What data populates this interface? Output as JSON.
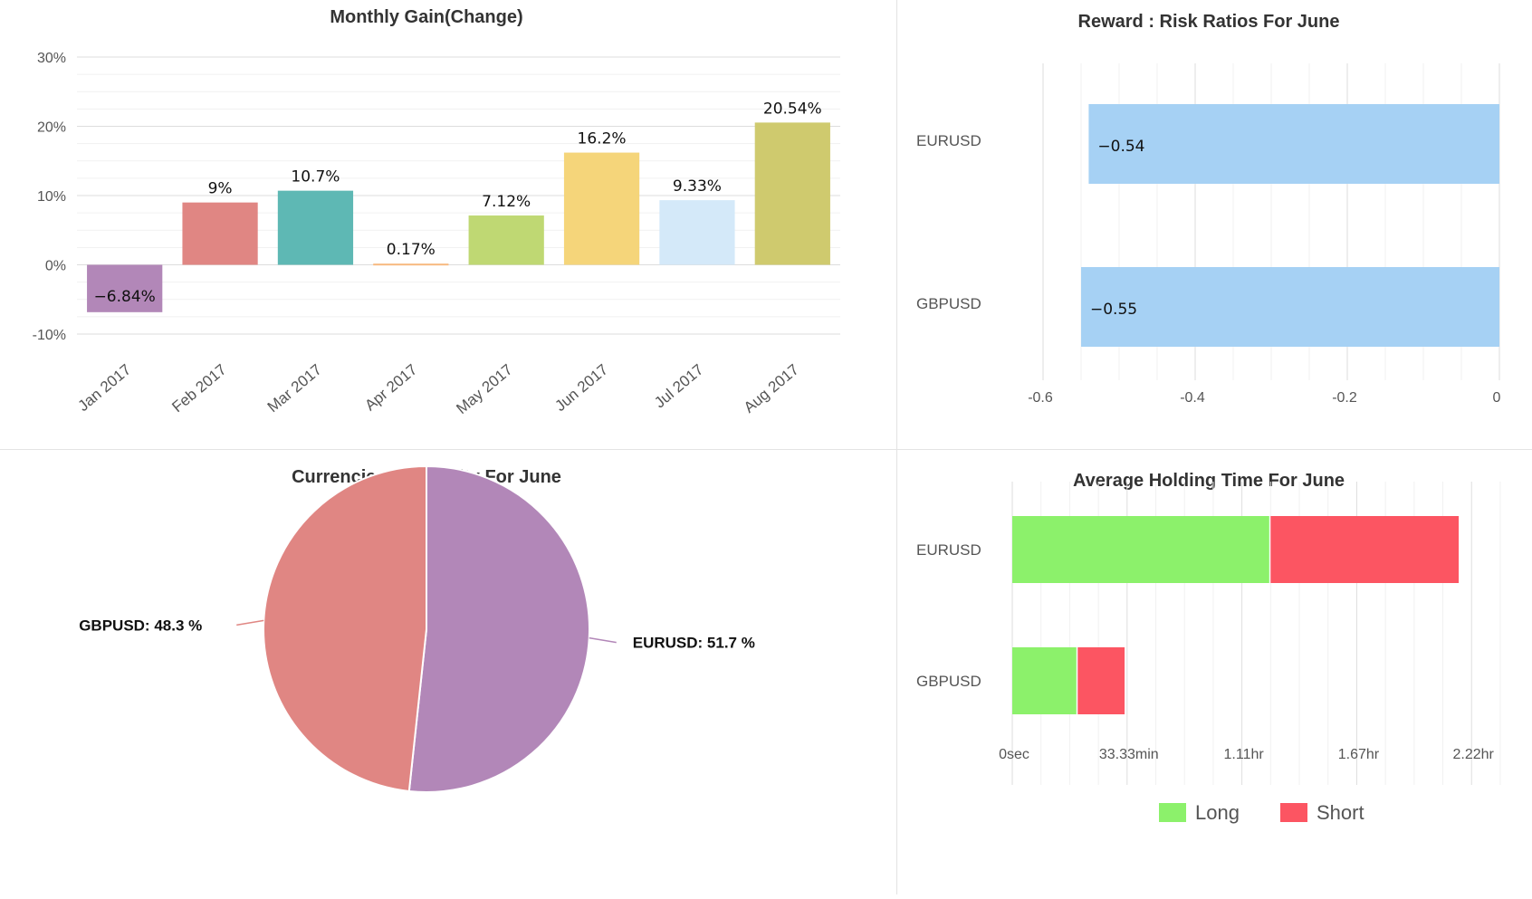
{
  "chart_data": [
    {
      "id": "monthly_gain",
      "type": "bar",
      "title": "Monthly Gain(Change)",
      "categories": [
        "Jan 2017",
        "Feb 2017",
        "Mar 2017",
        "Apr 2017",
        "May 2017",
        "Jun 2017",
        "Jul 2017",
        "Aug 2017"
      ],
      "values": [
        -6.84,
        9,
        10.7,
        0.17,
        7.12,
        16.2,
        9.33,
        20.54
      ],
      "value_labels": [
        "−6.84%",
        "9%",
        "10.7%",
        "0.17%",
        "7.12%",
        "16.2%",
        "9.33%",
        "20.54%"
      ],
      "colors": [
        "#b287b8",
        "#e08683",
        "#5eb8b4",
        "#f7b980",
        "#bfd873",
        "#f5d57a",
        "#d4e9f9",
        "#cfca6e"
      ],
      "y_ticks": [
        "30%",
        "20%",
        "10%",
        "0%",
        "-10%"
      ],
      "y_tick_values": [
        30,
        20,
        10,
        0,
        -10
      ],
      "ylim": [
        -10,
        30
      ],
      "grid": true
    },
    {
      "id": "reward_risk",
      "type": "bar",
      "orientation": "horizontal",
      "title": "Reward : Risk Ratios For June",
      "categories": [
        "EURUSD",
        "GBPUSD"
      ],
      "values": [
        -0.54,
        -0.55
      ],
      "value_labels": [
        "−0.54",
        "−0.55"
      ],
      "color": "#a6d1f4",
      "x_ticks": [
        "-0.6",
        "-0.4",
        "-0.2",
        "0"
      ],
      "x_tick_values": [
        -0.6,
        -0.4,
        -0.2,
        0
      ],
      "xlim": [
        -0.6,
        0
      ],
      "grid": true
    },
    {
      "id": "currencies_popularity",
      "type": "pie",
      "title": "Currencies Popularity For June",
      "slices": [
        {
          "name": "EURUSD",
          "value": 51.7,
          "label": "EURUSD: 51.7 %",
          "color": "#b287b8"
        },
        {
          "name": "GBPUSD",
          "value": 48.3,
          "label": "GBPUSD: 48.3 %",
          "color": "#e08683"
        }
      ]
    },
    {
      "id": "holding_time",
      "type": "bar",
      "orientation": "horizontal",
      "stacked": true,
      "title": "Average Holding Time For June",
      "categories": [
        "EURUSD",
        "GBPUSD"
      ],
      "unit": "minutes",
      "series": [
        {
          "name": "Long",
          "color": "#8cf16b",
          "values": [
            75,
            19
          ]
        },
        {
          "name": "Short",
          "color": "#fc5562",
          "values": [
            55,
            14
          ]
        }
      ],
      "x_ticks": [
        "0sec",
        "33.33min",
        "1.11hr",
        "1.67hr",
        "2.22hr"
      ],
      "x_tick_values": [
        0,
        33.33,
        66.67,
        100,
        133.33
      ],
      "xlim": [
        0,
        143
      ],
      "legend_position": "bottom",
      "grid": true
    }
  ]
}
